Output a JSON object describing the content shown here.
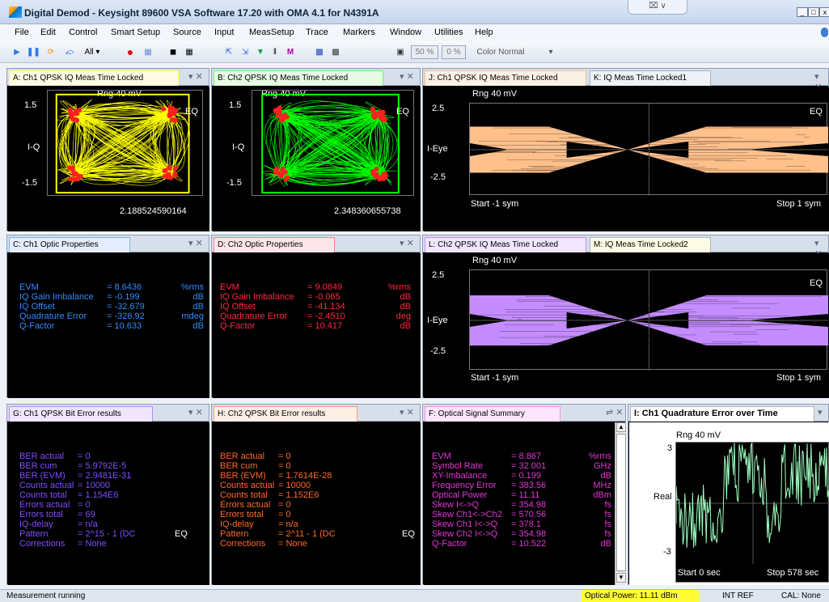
{
  "app": {
    "title": "Digital Demod - Keysight 89600 VSA Software 17.20 with OMA 4.1 for N4391A",
    "min": "_",
    "restore": "□",
    "close": "x",
    "aero": "⌧ ∨"
  },
  "menu": [
    "File",
    "Edit",
    "Control",
    "Smart Setup",
    "Source",
    "Input",
    "MeasSetup",
    "Trace",
    "Markers",
    "Window",
    "Utilities",
    "Help"
  ],
  "toolbar": {
    "all": "All ▾",
    "p50": "50 %",
    "p0": "0 %",
    "color": "Color Normal"
  },
  "paneA": {
    "tab": "A: Ch1 QPSK IQ Meas Time Locked",
    "rng": "Rng 40 mV",
    "top": "1.5",
    "bot": "-1.5",
    "ylab": "I-Q",
    "eq": "EQ",
    "bottom": "2.188524590164"
  },
  "paneB": {
    "tab": "B: Ch2 QPSK IQ Meas Time Locked",
    "rng": "Rng 40 mV",
    "top": "1.5",
    "bot": "-1.5",
    "ylab": "I-Q",
    "eq": "EQ",
    "bottom": "2.348360655738"
  },
  "paneJ": {
    "tab": "J: Ch1 QPSK IQ Meas Time Locked",
    "tab2": "K: IQ Meas Time Locked1",
    "rng": "Rng 40 mV",
    "top": "2.5",
    "bot": "-2.5",
    "ylab": "I-Eye",
    "eq": "EQ",
    "start": "Start -1 sym",
    "stop": "Stop 1 sym"
  },
  "paneL": {
    "tab": "L: Ch2 QPSK IQ Meas Time Locked",
    "tab2": "M: IQ Meas Time Locked2",
    "rng": "Rng 40 mV",
    "top": "2.5",
    "bot": "-2.5",
    "ylab": "I-Eye",
    "eq": "EQ",
    "start": "Start -1 sym",
    "stop": "Stop 1 sym"
  },
  "paneC": {
    "tab": "C: Ch1 Optic Properties",
    "color": "#2f8cff",
    "rows": [
      [
        "EVM",
        "= 8.6436",
        "%rms"
      ],
      [
        "IQ Gain Imbalance",
        "= -0.199",
        "dB"
      ],
      [
        "IQ Offset",
        "= -32.679",
        "dB"
      ],
      [
        "Quadrature Error",
        "= -326.92",
        "mdeg"
      ],
      [
        "Q-Factor",
        "= 10.633",
        "dB"
      ]
    ]
  },
  "paneD": {
    "tab": "D: Ch2 Optic Properties",
    "color": "#ff2a3c",
    "rows": [
      [
        "EVM",
        "= 9.0849",
        "%rms"
      ],
      [
        "IQ Gain Imbalance",
        "= -0.065",
        "dB"
      ],
      [
        "IQ Offset",
        "= -41.134",
        "dB"
      ],
      [
        "Quadrature Error",
        "= -2.4510",
        "deg"
      ],
      [
        "Q-Factor",
        "= 10.417",
        "dB"
      ]
    ]
  },
  "paneG": {
    "tab": "G: Ch1 QPSK Bit Error results",
    "color": "#7f4dff",
    "eq": "EQ",
    "rows": [
      [
        "BER actual",
        "= 0"
      ],
      [
        "BER cum",
        "= 5.9792E-5"
      ],
      [
        "BER (EVM)",
        "= 2.9481E-31"
      ],
      [
        "Counts actual",
        "= 10000"
      ],
      [
        "Counts total",
        "= 1.154E6"
      ],
      [
        "Errors actual",
        "= 0"
      ],
      [
        "Errors total",
        "= 69"
      ],
      [
        "IQ-delay",
        "= n/a"
      ],
      [
        "Pattern",
        "= 2^15 - 1 (DC"
      ],
      [
        "Corrections",
        "= None"
      ]
    ]
  },
  "paneH": {
    "tab": "H: Ch2 QPSK Bit Error results",
    "color": "#ff6a2a",
    "eq": "EQ",
    "rows": [
      [
        "BER actual",
        "= 0"
      ],
      [
        "BER cum",
        "= 0"
      ],
      [
        "BER (EVM)",
        "= 1.7614E-28"
      ],
      [
        "Counts actual",
        "= 10000"
      ],
      [
        "Counts total",
        "= 1.152E6"
      ],
      [
        "Errors actual",
        "= 0"
      ],
      [
        "Errors total",
        "= 0"
      ],
      [
        "IQ-delay",
        "= n/a"
      ],
      [
        "Pattern",
        "= 2^11 - 1 (DC"
      ],
      [
        "Corrections",
        "= None"
      ]
    ]
  },
  "paneF": {
    "tab": "F: Optical Signal Summary",
    "color": "#e236d6",
    "rows": [
      [
        "EVM",
        "= 8.867",
        "%rms"
      ],
      [
        "Symbol Rate",
        "= 32.001",
        "GHz"
      ],
      [
        "XY-Imbalance",
        "= 0.199",
        "dB"
      ],
      [
        "Frequency Error",
        "= 383.56",
        "MHz"
      ],
      [
        "Optical Power",
        "= 11.11",
        "dBm"
      ],
      [
        "Skew I<->Q",
        "= 354.98",
        "fs"
      ],
      [
        "Skew Ch1<->Ch2",
        "= 570.56",
        "fs"
      ],
      [
        "Skew Ch1 I<->Q",
        "= 378.1",
        "fs"
      ],
      [
        "Skew Ch2 I<->Q",
        "= 354.98",
        "fs"
      ],
      [
        "Q-Factor",
        "= 10.522",
        "dB"
      ]
    ]
  },
  "paneI": {
    "tab": "I: Ch1 Quadrature Error over Time",
    "rng": "Rng 40 mV",
    "top": "3",
    "bot": "-3",
    "ylab": "Real",
    "start": "Start 0 sec",
    "stop": "Stop 578 sec"
  },
  "status": {
    "left": "Measurement running",
    "power": "Optical Power: 11.11 dBm",
    "ref": "INT REF",
    "cal": "CAL: None"
  },
  "colors": {
    "constA": "#ffff00",
    "constB": "#00ff00",
    "dots": "#ff2020",
    "eyeJ": "#ffc08a",
    "eyeL": "#c48cff",
    "trace": "#9effc0"
  }
}
